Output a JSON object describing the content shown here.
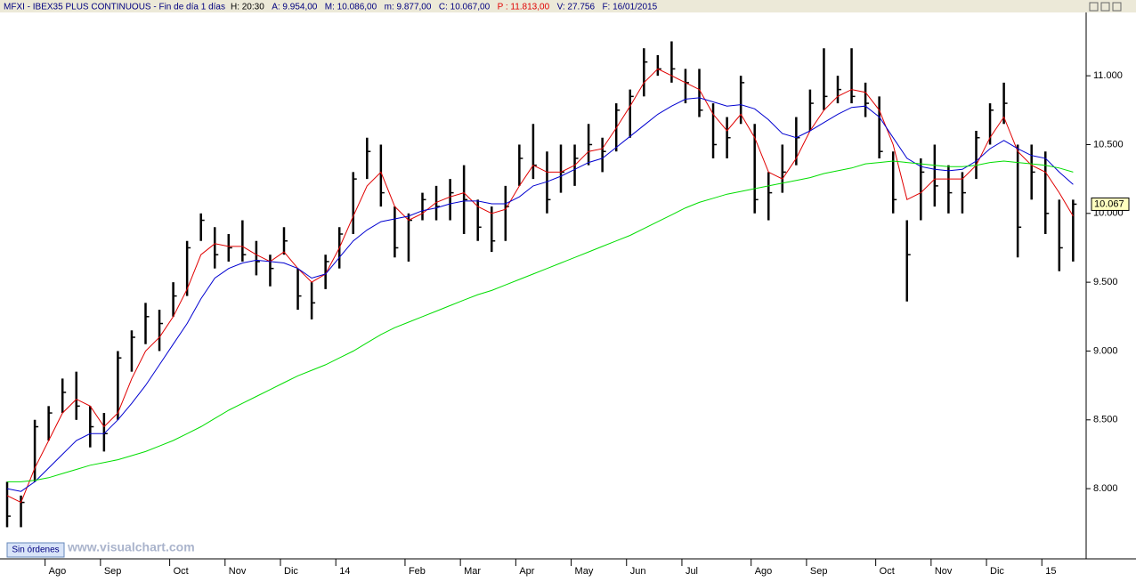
{
  "chart_data": {
    "type": "ohlc",
    "title": "MFXI - IBEX35 PLUS CONTINUOUS - Fin de día 1 días",
    "info": [
      {
        "text": "H: 20:30",
        "color": "#000000"
      },
      {
        "text": "A: 9.954,00",
        "color": "#000080"
      },
      {
        "text": "M: 10.086,00",
        "color": "#000080"
      },
      {
        "text": "m: 9.877,00",
        "color": "#000080"
      },
      {
        "text": "C: 10.067,00",
        "color": "#000080"
      },
      {
        "text": "P : 11.813,00",
        "color": "#e00000"
      },
      {
        "text": "V: 27.756",
        "color": "#000080"
      },
      {
        "text": "F: 16/01/2015",
        "color": "#000080"
      }
    ],
    "annotations": [
      "Sin órdenes",
      "www.visualchart.com"
    ],
    "last_value_label": "10.067",
    "categories": [
      null,
      null,
      null,
      "Ago",
      null,
      null,
      null,
      "Sep",
      null,
      null,
      null,
      null,
      "Oct",
      null,
      null,
      null,
      "Nov",
      null,
      null,
      null,
      "Dic",
      null,
      null,
      null,
      "14",
      null,
      null,
      null,
      null,
      "Feb",
      null,
      null,
      null,
      "Mar",
      null,
      null,
      null,
      "Apr",
      null,
      null,
      null,
      "May",
      null,
      null,
      null,
      "Jun",
      null,
      null,
      null,
      "Jul",
      null,
      null,
      null,
      null,
      "Ago",
      null,
      null,
      null,
      "Sep",
      null,
      null,
      null,
      null,
      "Oct",
      null,
      null,
      null,
      "Nov",
      null,
      null,
      null,
      "Dic",
      null,
      null,
      null,
      "15",
      null,
      null
    ],
    "high": [
      8050,
      7950,
      8500,
      8600,
      8800,
      8850,
      8600,
      8550,
      9000,
      9150,
      9350,
      9300,
      9500,
      9800,
      10000,
      9900,
      9850,
      9950,
      9800,
      9700,
      9900,
      9600,
      9500,
      9700,
      9900,
      10300,
      10550,
      10500,
      10050,
      10000,
      10150,
      10200,
      10250,
      10350,
      10100,
      10050,
      10200,
      10500,
      10650,
      10450,
      10500,
      10500,
      10650,
      10550,
      10800,
      10900,
      11200,
      11150,
      11250,
      11050,
      11050,
      10800,
      10700,
      11000,
      10650,
      10300,
      10500,
      10700,
      10900,
      11200,
      11000,
      11200,
      10950,
      10850,
      10450,
      9950,
      10400,
      10500,
      10350,
      10300,
      10600,
      10800,
      10950,
      10500,
      10500,
      10450,
      10100,
      10100
    ],
    "low": [
      7720,
      7720,
      8050,
      8350,
      8550,
      8500,
      8300,
      8270,
      8500,
      8850,
      9050,
      9000,
      9250,
      9400,
      9800,
      9600,
      9650,
      9650,
      9550,
      9470,
      9700,
      9300,
      9230,
      9450,
      9600,
      9850,
      10250,
      10050,
      9680,
      9650,
      9950,
      9950,
      9950,
      9850,
      9800,
      9720,
      9800,
      10200,
      10250,
      10000,
      10150,
      10200,
      10350,
      10300,
      10450,
      10550,
      10850,
      11000,
      10950,
      10800,
      10700,
      10400,
      10400,
      10650,
      10000,
      9950,
      10150,
      10350,
      10600,
      10750,
      10800,
      10800,
      10700,
      10400,
      10000,
      9360,
      9950,
      10050,
      10000,
      10000,
      10250,
      10500,
      10650,
      9680,
      10100,
      9850,
      9580,
      9650
    ],
    "close": [
      7800,
      7900,
      8450,
      8550,
      8700,
      8600,
      8450,
      8400,
      8950,
      9100,
      9250,
      9200,
      9400,
      9750,
      9950,
      9700,
      9750,
      9700,
      9650,
      9600,
      9800,
      9400,
      9350,
      9650,
      9850,
      10250,
      10450,
      10150,
      9750,
      9950,
      10100,
      10050,
      10150,
      10100,
      9900,
      9800,
      10050,
      10400,
      10350,
      10100,
      10300,
      10400,
      10500,
      10450,
      10750,
      10850,
      11100,
      11050,
      11050,
      10950,
      10750,
      10500,
      10550,
      10950,
      10100,
      10150,
      10300,
      10550,
      10800,
      10850,
      10900,
      10850,
      10800,
      10450,
      10100,
      9700,
      10300,
      10200,
      10150,
      10150,
      10550,
      10750,
      10800,
      9900,
      10300,
      10000,
      9750,
      10067
    ],
    "bar_color": "#000000",
    "lines": [
      {
        "color": "#e00000",
        "values": [
          7950,
          7900,
          8150,
          8350,
          8550,
          8650,
          8600,
          8450,
          8550,
          8800,
          9000,
          9100,
          9250,
          9450,
          9700,
          9780,
          9760,
          9760,
          9700,
          9650,
          9720,
          9600,
          9500,
          9560,
          9750,
          9980,
          10200,
          10300,
          10050,
          9950,
          10000,
          10080,
          10120,
          10150,
          10050,
          10000,
          10030,
          10200,
          10350,
          10300,
          10300,
          10350,
          10450,
          10470,
          10620,
          10780,
          10950,
          11050,
          11000,
          10950,
          10900,
          10720,
          10600,
          10720,
          10550,
          10300,
          10250,
          10400,
          10600,
          10750,
          10850,
          10900,
          10880,
          10750,
          10500,
          10100,
          10150,
          10250,
          10250,
          10250,
          10350,
          10550,
          10700,
          10450,
          10350,
          10300,
          10150,
          9980
        ]
      },
      {
        "color": "#0000d0",
        "values": [
          8000,
          7980,
          8050,
          8150,
          8250,
          8350,
          8400,
          8400,
          8500,
          8620,
          8750,
          8900,
          9050,
          9200,
          9380,
          9530,
          9600,
          9640,
          9660,
          9650,
          9640,
          9600,
          9530,
          9560,
          9680,
          9800,
          9880,
          9940,
          9960,
          9980,
          10020,
          10040,
          10070,
          10090,
          10090,
          10070,
          10070,
          10120,
          10200,
          10230,
          10270,
          10320,
          10370,
          10400,
          10480,
          10560,
          10640,
          10720,
          10780,
          10830,
          10840,
          10810,
          10780,
          10790,
          10760,
          10680,
          10580,
          10550,
          10600,
          10660,
          10720,
          10770,
          10780,
          10700,
          10550,
          10400,
          10340,
          10320,
          10310,
          10320,
          10380,
          10470,
          10530,
          10470,
          10420,
          10400,
          10300,
          10210
        ]
      },
      {
        "color": "#00dd00",
        "values": [
          8050,
          8050,
          8060,
          8080,
          8110,
          8140,
          8170,
          8190,
          8210,
          8240,
          8270,
          8310,
          8350,
          8400,
          8450,
          8510,
          8570,
          8620,
          8670,
          8720,
          8770,
          8820,
          8860,
          8900,
          8950,
          9000,
          9060,
          9120,
          9170,
          9210,
          9250,
          9290,
          9330,
          9370,
          9410,
          9440,
          9480,
          9520,
          9560,
          9600,
          9640,
          9680,
          9720,
          9760,
          9800,
          9840,
          9890,
          9940,
          9990,
          10040,
          10080,
          10110,
          10140,
          10160,
          10180,
          10200,
          10220,
          10240,
          10260,
          10290,
          10310,
          10330,
          10360,
          10370,
          10380,
          10370,
          10360,
          10350,
          10340,
          10340,
          10350,
          10370,
          10380,
          10370,
          10360,
          10350,
          10330,
          10300
        ]
      }
    ],
    "ylim": [
      7490,
      11460
    ],
    "yticks": [
      {
        "value": 8000,
        "label": "8.000"
      },
      {
        "value": 8500,
        "label": "8.500"
      },
      {
        "value": 9000,
        "label": "9.000"
      },
      {
        "value": 9500,
        "label": "9.500"
      },
      {
        "value": 10000,
        "label": "10.000"
      },
      {
        "value": 10500,
        "label": "10.500"
      },
      {
        "value": 11000,
        "label": "11.000"
      }
    ]
  }
}
